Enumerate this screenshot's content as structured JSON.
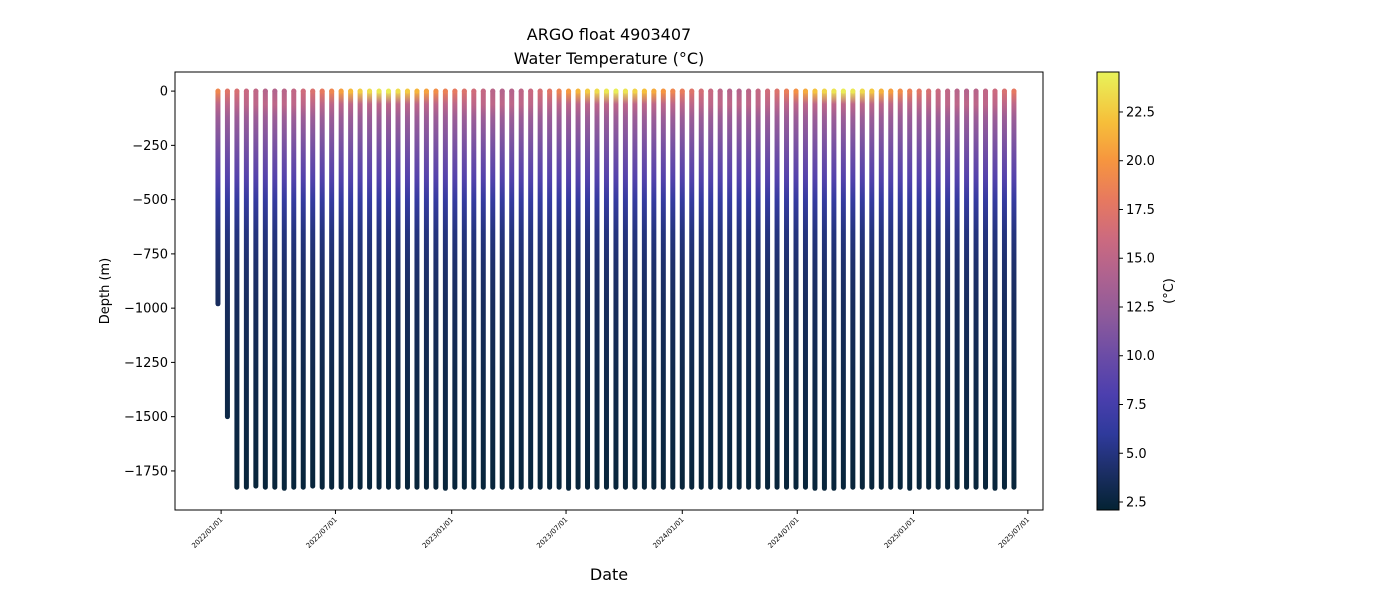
{
  "chart_data": {
    "type": "profile-scatter",
    "title": "ARGO float 4903407",
    "subtitle": "Water Temperature (°C)",
    "x_label": "Date",
    "y_label": "Depth (m)",
    "colorbar_label": "(°C)",
    "x": [
      "2021-12-27",
      "2022-01-11",
      "2022-01-26",
      "2022-02-10",
      "2022-02-25",
      "2022-03-12",
      "2022-03-27",
      "2022-04-11",
      "2022-04-26",
      "2022-05-11",
      "2022-05-26",
      "2022-06-10",
      "2022-06-25",
      "2022-07-10",
      "2022-07-25",
      "2022-08-09",
      "2022-08-24",
      "2022-09-08",
      "2022-09-23",
      "2022-10-08",
      "2022-10-23",
      "2022-11-07",
      "2022-11-22",
      "2022-12-07",
      "2022-12-22",
      "2023-01-06",
      "2023-01-21",
      "2023-02-05",
      "2023-02-20",
      "2023-03-07",
      "2023-03-22",
      "2023-04-06",
      "2023-04-21",
      "2023-05-06",
      "2023-05-21",
      "2023-06-05",
      "2023-06-20",
      "2023-07-05",
      "2023-07-20",
      "2023-08-04",
      "2023-08-19",
      "2023-09-03",
      "2023-09-18",
      "2023-10-03",
      "2023-10-18",
      "2023-11-02",
      "2023-11-17",
      "2023-12-02",
      "2023-12-17",
      "2024-01-01",
      "2024-01-16",
      "2024-01-31",
      "2024-02-15",
      "2024-03-01",
      "2024-03-16",
      "2024-03-31",
      "2024-04-15",
      "2024-04-30",
      "2024-05-15",
      "2024-05-30",
      "2024-06-14",
      "2024-06-29",
      "2024-07-14",
      "2024-07-29",
      "2024-08-13",
      "2024-08-28",
      "2024-09-12",
      "2024-09-27",
      "2024-10-12",
      "2024-10-27",
      "2024-11-11",
      "2024-11-26",
      "2024-12-11",
      "2024-12-26",
      "2025-01-10",
      "2025-01-25",
      "2025-02-09",
      "2025-02-24",
      "2025-03-11",
      "2025-03-26",
      "2025-04-10",
      "2025-04-25",
      "2025-05-10",
      "2025-05-25",
      "2025-06-09"
    ],
    "bottom_depths": [
      -980,
      -1500,
      -1825,
      -1825,
      -1820,
      -1825,
      -1825,
      -1830,
      -1825,
      -1825,
      -1820,
      -1825,
      -1825,
      -1825,
      -1825,
      -1825,
      -1825,
      -1825,
      -1825,
      -1825,
      -1825,
      -1825,
      -1825,
      -1825,
      -1830,
      -1825,
      -1825,
      -1825,
      -1825,
      -1825,
      -1825,
      -1825,
      -1825,
      -1825,
      -1825,
      -1825,
      -1825,
      -1830,
      -1825,
      -1825,
      -1825,
      -1825,
      -1825,
      -1825,
      -1825,
      -1825,
      -1825,
      -1825,
      -1825,
      -1825,
      -1825,
      -1825,
      -1825,
      -1825,
      -1825,
      -1825,
      -1825,
      -1825,
      -1825,
      -1825,
      -1825,
      -1825,
      -1825,
      -1830,
      -1830,
      -1830,
      -1825,
      -1825,
      -1825,
      -1825,
      -1825,
      -1825,
      -1825,
      -1830,
      -1825,
      -1825,
      -1825,
      -1825,
      -1825,
      -1825,
      -1825,
      -1825,
      -1830,
      -1825,
      -1825
    ],
    "surface_temps": [
      19,
      17.5,
      16.8,
      15.8,
      15.2,
      14.6,
      14.4,
      14.8,
      15.3,
      16.2,
      17,
      18,
      19,
      20.5,
      21.8,
      22.8,
      23.5,
      24,
      24.2,
      23.5,
      22.6,
      21.5,
      20.6,
      19.5,
      18.6,
      18,
      17.2,
      16.3,
      15.5,
      14.8,
      14.5,
      14.6,
      15.1,
      15.8,
      16.7,
      17.6,
      18.8,
      20.2,
      21.5,
      22.6,
      23.4,
      24,
      24.3,
      23.8,
      23,
      22,
      21,
      20,
      19,
      18.2,
      17.3,
      16.5,
      15.7,
      15,
      14.6,
      14.5,
      14.9,
      15.5,
      16.3,
      17.2,
      18.4,
      19.7,
      21,
      22.2,
      23.1,
      23.8,
      24.2,
      24,
      23.3,
      22.4,
      21.4,
      20.4,
      19.4,
      18.5,
      17.6,
      16.8,
      15.9,
      15.2,
      14.7,
      14.5,
      14.7,
      15.2,
      16,
      16.9,
      17.9
    ],
    "profile_depths": [
      -60,
      -120,
      -200,
      -300,
      -400,
      -500,
      -650,
      -800,
      -1000,
      -1300,
      -1600,
      -1830
    ],
    "profile_temps": [
      15,
      13,
      11.5,
      10,
      8.5,
      6.5,
      5,
      4.3,
      3.7,
      3.1,
      2.7,
      2.4
    ],
    "xlim": [
      "2021-10-20",
      "2025-07-25"
    ],
    "xticks": [
      {
        "value": "2022-01-01",
        "label": "2022/01/01"
      },
      {
        "value": "2022-07-01",
        "label": "2022/07/01"
      },
      {
        "value": "2023-01-01",
        "label": "2023/01/01"
      },
      {
        "value": "2023-07-01",
        "label": "2023/07/01"
      },
      {
        "value": "2024-01-01",
        "label": "2024/01/01"
      },
      {
        "value": "2024-07-01",
        "label": "2024/07/01"
      },
      {
        "value": "2025-01-01",
        "label": "2025/01/01"
      },
      {
        "value": "2025-07-01",
        "label": "2025/07/01"
      }
    ],
    "ylim": [
      -1930,
      88
    ],
    "yticks": [
      0,
      {
        "value": -250,
        "label": "−250"
      },
      {
        "value": -500,
        "label": "−500"
      },
      {
        "value": -750,
        "label": "−750"
      },
      {
        "value": -1000,
        "label": "−1000"
      },
      {
        "value": -1250,
        "label": "−1250"
      },
      {
        "value": -1500,
        "label": "−1500"
      },
      {
        "value": -1750,
        "label": "−1750"
      }
    ],
    "clim": [
      2.09,
      24.55
    ],
    "cticks": [
      2.5,
      {
        "value": 5,
        "label": "5.0"
      },
      7.5,
      {
        "value": 10,
        "label": "10.0"
      },
      12.5,
      {
        "value": 15,
        "label": "15.0"
      },
      17.5,
      {
        "value": 20,
        "label": "20.0"
      },
      22.5
    ],
    "colormap": {
      "values": [
        2.09,
        4,
        6,
        8,
        10,
        12,
        14,
        16,
        18,
        20,
        22,
        24.55
      ],
      "colors": [
        "#042333",
        "#1b2e64",
        "#2f3a9c",
        "#4c3fae",
        "#6b4ca6",
        "#8d5a9b",
        "#ad6290",
        "#cc6a7f",
        "#e7795f",
        "#f6953f",
        "#f6bf3a",
        "#e8f35a"
      ]
    }
  }
}
